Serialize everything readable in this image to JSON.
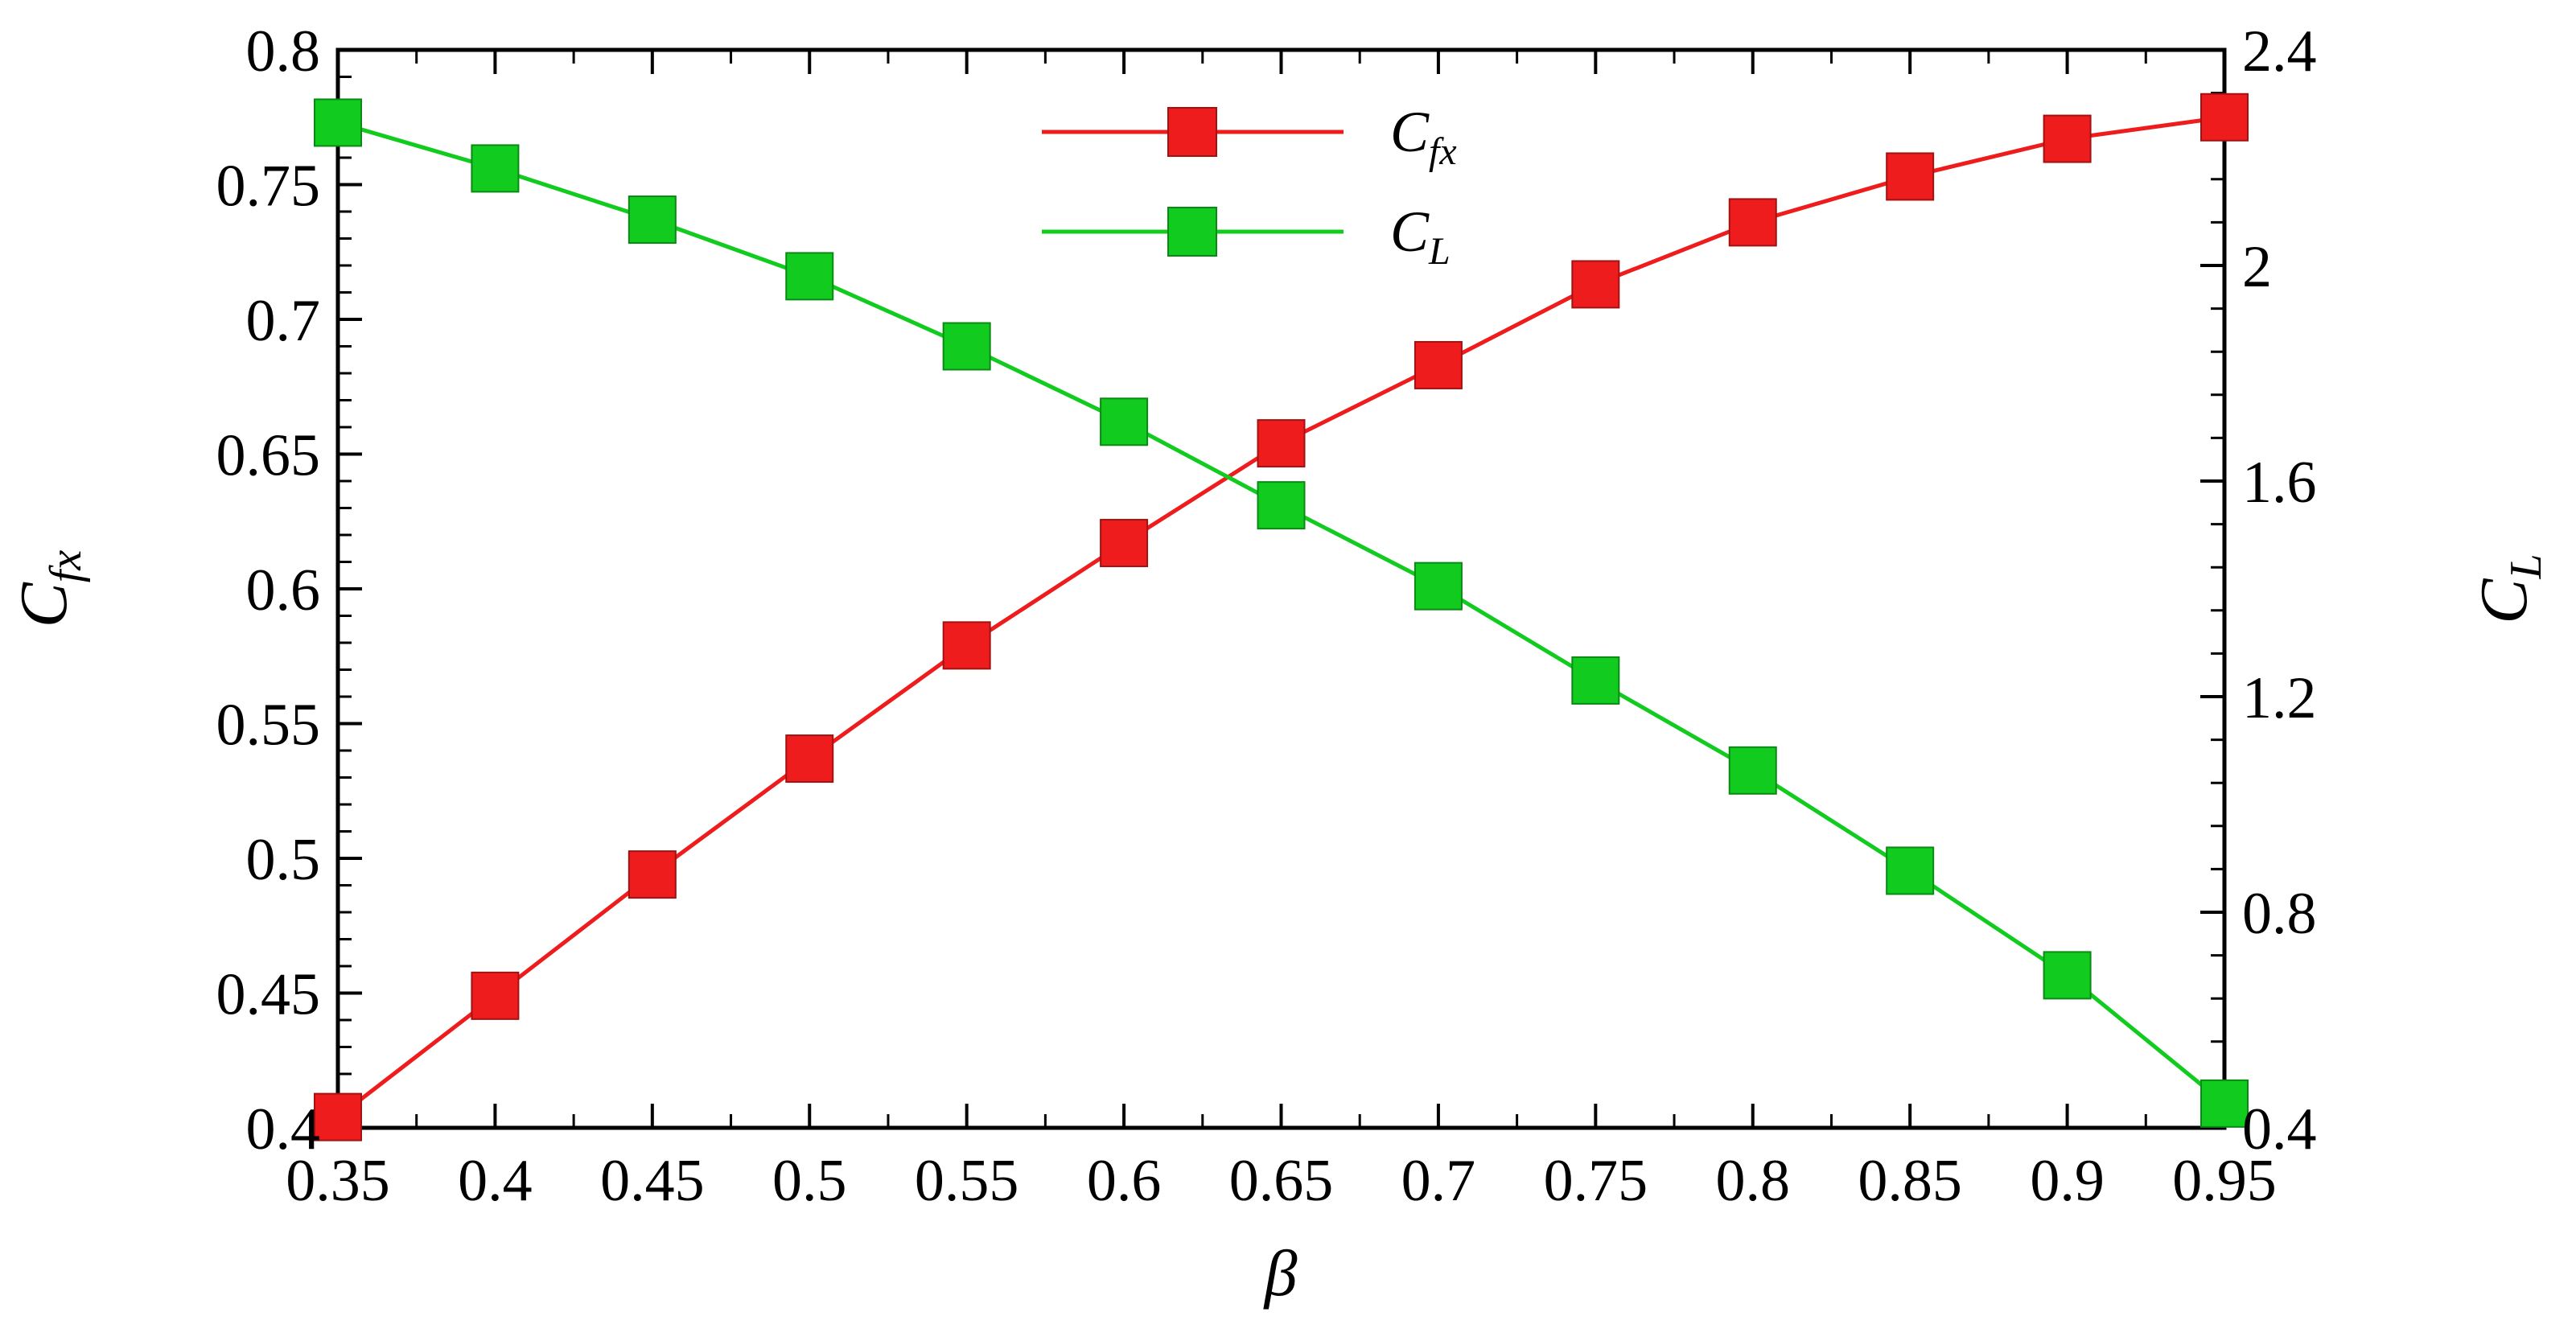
{
  "chart_data": {
    "type": "line",
    "xlabel": "β",
    "x_ticks": [
      "0.35",
      "0.4",
      "0.45",
      "0.5",
      "0.55",
      "0.6",
      "0.65",
      "0.7",
      "0.75",
      "0.8",
      "0.85",
      "0.9",
      "0.95"
    ],
    "xlim": [
      0.35,
      0.95
    ],
    "x": [
      0.35,
      0.4,
      0.45,
      0.5,
      0.55,
      0.6,
      0.65,
      0.7,
      0.75,
      0.8,
      0.85,
      0.9,
      0.95
    ],
    "y_left": {
      "label_main": "C",
      "label_sub": "fx",
      "lim": [
        0.4,
        0.8
      ],
      "ticks": [
        "0.4",
        "0.45",
        "0.5",
        "0.55",
        "0.6",
        "0.65",
        "0.7",
        "0.75",
        "0.8"
      ]
    },
    "y_right": {
      "label_main": "C",
      "label_sub": "L",
      "lim": [
        0.4,
        2.4
      ],
      "ticks": [
        "0.4",
        "0.8",
        "1.2",
        "1.6",
        "2",
        "2.4"
      ]
    },
    "series": [
      {
        "name_main": "C",
        "name_sub": "fx",
        "axis": "left",
        "color": "#ee1c1c",
        "marker": "square",
        "values": [
          0.404,
          0.449,
          0.494,
          0.537,
          0.579,
          0.617,
          0.654,
          0.683,
          0.713,
          0.736,
          0.753,
          0.767,
          0.775
        ]
      },
      {
        "name_main": "C",
        "name_sub": "L",
        "axis": "right",
        "color": "#11cc1f",
        "marker": "square",
        "values": [
          2.265,
          2.18,
          2.085,
          1.98,
          1.85,
          1.71,
          1.555,
          1.405,
          1.23,
          1.063,
          0.877,
          0.683,
          0.445
        ]
      }
    ],
    "legend_position": "top-center",
    "grid": false,
    "minor_ticks": true
  }
}
